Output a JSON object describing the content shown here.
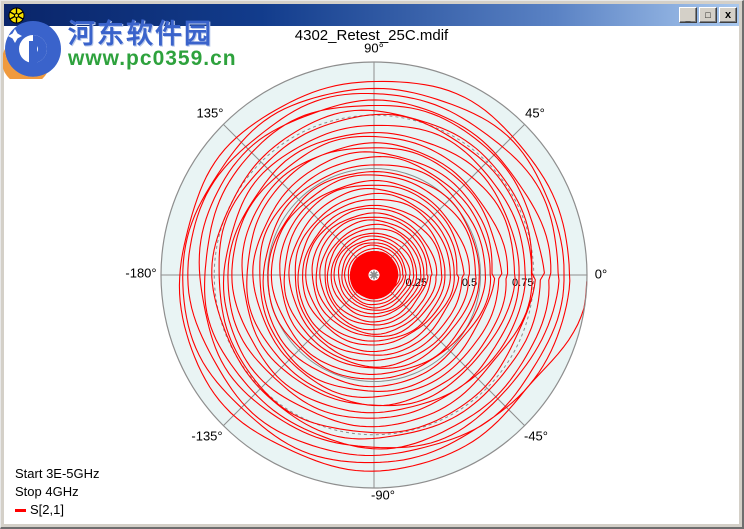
{
  "window": {
    "controls": {
      "minimize": "_",
      "maximize": "□",
      "close": "x"
    }
  },
  "watermark": {
    "name": "河东软件园",
    "url": "www.pc0359.cn"
  },
  "chart": {
    "title": "4302_Retest_25C.mdif",
    "angle_labels": {
      "a90": "90°",
      "a45": "45°",
      "a0": "0°",
      "am45": "-45°",
      "am90": "-90°",
      "am135": "-135°",
      "am180": "-180°",
      "a135": "135°"
    }
  },
  "annotations": {
    "start": "Start 3E-5GHz",
    "stop": "Stop  4GHz"
  },
  "legend": {
    "label": "S[2,1]"
  },
  "chart_data": {
    "type": "polar",
    "title": "4302_Retest_25C.mdif",
    "series": [
      {
        "name": "S[2,1]",
        "color": "#ff0000",
        "freq_start": "3E-5GHz",
        "freq_stop": "4GHz"
      }
    ],
    "angle_ticks_deg": [
      0,
      45,
      90,
      135,
      180,
      -45,
      -90,
      -135
    ],
    "radial_axis": {
      "max": 1,
      "ticks": [
        {
          "value": 0.25,
          "label": "0.25",
          "grid": "none"
        },
        {
          "value": 0.5,
          "label": "0.5",
          "grid": "solid"
        },
        {
          "value": 0.75,
          "label": "0.75",
          "grid": "dashed"
        }
      ]
    },
    "styles": {
      "plot_fill": "#e9f4f4",
      "grid_color": "#8e8e8e",
      "trace_color": "#ff0000",
      "marker_color": "#8a8a8a"
    },
    "trace_model": {
      "description": "S[2,1] frequency sweep spiraling inward: magnitude ~1 at 3E-5GHz (rim, 0 deg) winding clockwise down to ~0 at 4GHz (dense red center blob); radius steps occur just below the 0 deg axis",
      "turns": 46,
      "r_start": 1.0,
      "r_outer": 0.95,
      "r_inner": 0.03,
      "shape_exponent": 1.6,
      "step_fraction": 0.1,
      "points_per_turn": 150,
      "wobble_amp": [
        0.012,
        0.009,
        0.005
      ],
      "wobble_freq": [
        2,
        5,
        9
      ],
      "center_blob_radius_px": 24,
      "center_marker": "asterisk"
    }
  }
}
